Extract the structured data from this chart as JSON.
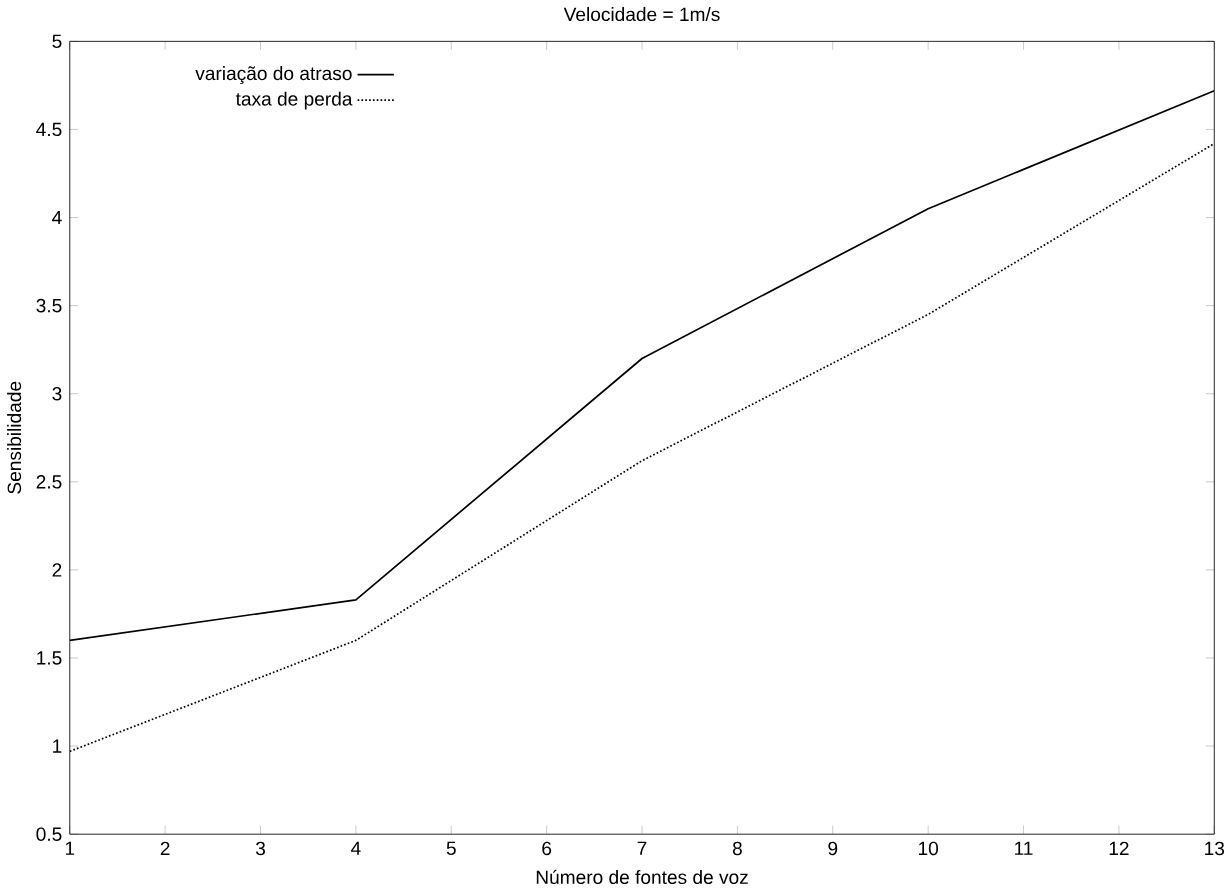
{
  "chart_data": {
    "type": "line",
    "title": "Velocidade = 1m/s",
    "xlabel": "Número de fontes de voz",
    "ylabel": "Sensibilidade",
    "x": [
      1,
      4,
      7,
      10,
      13
    ],
    "series": [
      {
        "name": "variação do atraso",
        "color": "#000000",
        "line_style": "solid",
        "values": [
          1.6,
          1.83,
          3.2,
          4.05,
          4.72
        ]
      },
      {
        "name": "taxa de perda",
        "color": "#000000",
        "line_style": "dotted",
        "values": [
          0.97,
          1.6,
          2.62,
          3.45,
          4.42
        ]
      }
    ],
    "xlim": [
      1,
      13
    ],
    "xticks": [
      1,
      2,
      3,
      4,
      5,
      6,
      7,
      8,
      9,
      10,
      11,
      12,
      13
    ],
    "ylim": [
      0.5,
      5
    ],
    "yticks": [
      0.5,
      1,
      1.5,
      2,
      2.5,
      3,
      3.5,
      4,
      4.5,
      5
    ],
    "legend": "top left",
    "marker": "none"
  }
}
